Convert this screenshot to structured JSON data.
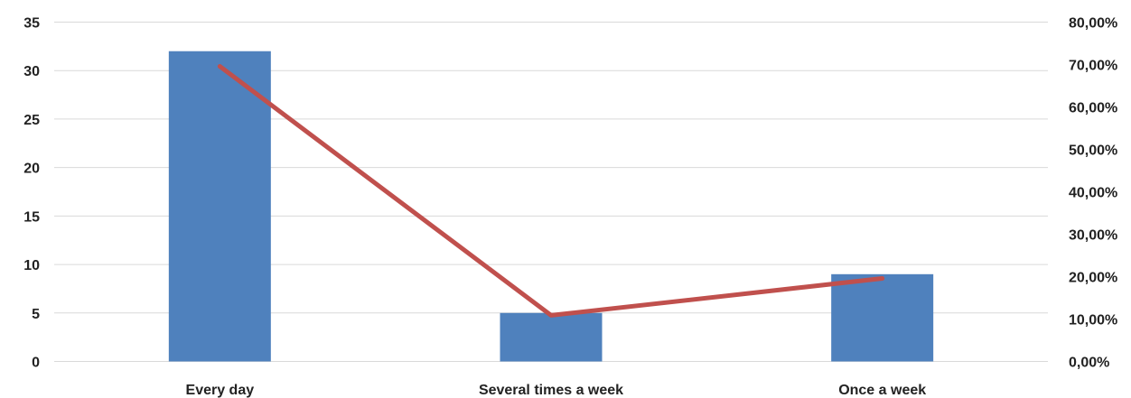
{
  "chart_data": {
    "type": "bar",
    "categories": [
      "Every day",
      "Several times a week",
      "Once a week"
    ],
    "series": [
      {
        "kind": "bar",
        "axis": "left",
        "values": [
          32,
          5,
          9
        ],
        "color": "#4f81bd"
      },
      {
        "kind": "line",
        "axis": "right",
        "values": [
          0.6957,
          0.1087,
          0.1957
        ],
        "color": "#c0504d"
      }
    ],
    "y_left": {
      "min": 0,
      "max": 35,
      "step": 5,
      "tick_labels": [
        "0",
        "5",
        "10",
        "15",
        "20",
        "25",
        "30",
        "35"
      ]
    },
    "y_right": {
      "min": 0,
      "max": 0.8,
      "step": 0.1,
      "tick_labels": [
        "0,00%",
        "10,00%",
        "20,00%",
        "30,00%",
        "40,00%",
        "50,00%",
        "60,00%",
        "70,00%",
        "80,00%"
      ]
    },
    "grid": true,
    "legend": "none"
  }
}
